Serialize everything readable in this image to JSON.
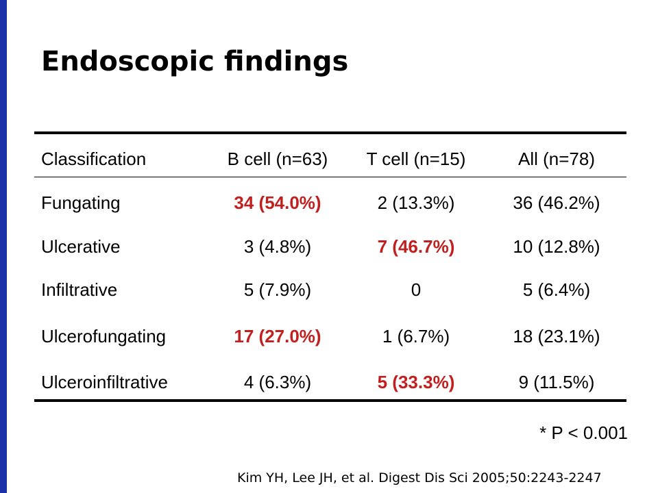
{
  "slide": {
    "title": "Endoscopic findings",
    "p_note": "* P < 0.001",
    "citation": "Kim YH, Lee JH, et al. Digest Dis Sci 2005;50:2243-2247",
    "accent_color": "#c0201f",
    "side_bar_color": "#1a2fa8"
  },
  "table": {
    "headers": [
      "Classification",
      "B cell (n=63)",
      "T cell (n=15)",
      "All (n=78)"
    ],
    "rows": [
      {
        "label": "Fungating",
        "b_cell": "34 (54.0%)",
        "t_cell": "2 (13.3%)",
        "all": "36 (46.2%)"
      },
      {
        "label": "Ulcerative",
        "b_cell": "3 (4.8%)",
        "t_cell": "7 (46.7%)",
        "all": "10 (12.8%)"
      },
      {
        "label": "Infiltrative",
        "b_cell": "5 (7.9%)",
        "t_cell": "0",
        "all": "5 (6.4%)"
      },
      {
        "label": "Ulcerofungating",
        "b_cell": "17 (27.0%)",
        "t_cell": "1 (6.7%)",
        "all": "18 (23.1%)"
      },
      {
        "label": "Ulceroinfiltrative",
        "b_cell": "4 (6.3%)",
        "t_cell": "5 (33.3%)",
        "all": "9 (11.5%)"
      }
    ]
  }
}
